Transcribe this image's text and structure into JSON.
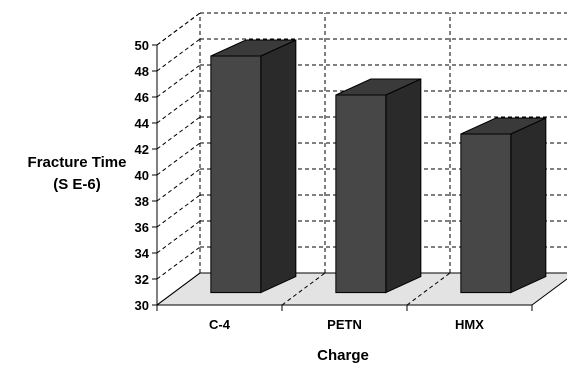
{
  "chart_data": {
    "type": "bar",
    "title": "",
    "xlabel": "Charge",
    "ylabel_lines": [
      "Fracture Time",
      "(S E-6)"
    ],
    "categories": [
      "C-4",
      "PETN",
      "HMX"
    ],
    "values": [
      48.2,
      45.2,
      42.2
    ],
    "ylim": [
      30,
      50
    ],
    "ytick_step": 2,
    "grid": true,
    "legend": "none",
    "colors": {
      "bar_front": "#474747",
      "bar_side": "#2a2a2a",
      "bar_top": "#3a3a3a",
      "floor": "#e3e3e3",
      "grid": "#000000"
    }
  }
}
